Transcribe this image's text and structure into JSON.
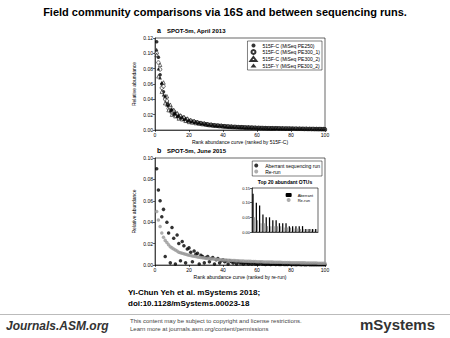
{
  "page": {
    "title": "Field community comparisons via 16S and between sequencing runs.",
    "citation": [
      "Yi-Chun Yeh et al. mSystems 2018;",
      "doi:10.1128/mSystems.00023-18"
    ],
    "publisher": "Journals.ASM.org",
    "notice": [
      "This content may be subject to copyright and license restrictions.",
      "Learn more at journals.asm.org/content/permissions"
    ],
    "journal": "mSystems"
  },
  "chart_data": [
    {
      "type": "scatter",
      "panel": "a",
      "title": "SPOT-5m, April 2013",
      "x_label": "Rank abundance curve (ranked by 515F-C)",
      "y_label": "Relative abundance",
      "x": [
        1,
        2,
        3,
        4,
        5,
        6,
        7,
        8,
        9,
        10,
        11,
        12,
        13,
        14,
        15,
        16,
        17,
        18,
        19,
        20,
        21,
        22,
        23,
        24,
        25,
        26,
        27,
        28,
        29,
        30,
        31,
        32,
        33,
        34,
        35,
        36,
        37,
        38,
        39,
        40,
        41,
        42,
        43,
        44,
        45,
        46,
        47,
        48,
        49,
        50,
        51,
        52,
        53,
        54,
        55,
        56,
        57,
        58,
        59,
        60,
        61,
        62,
        63,
        64,
        65,
        66,
        67,
        68,
        69,
        70,
        71,
        72,
        73,
        74,
        75,
        76,
        77,
        78,
        79,
        80,
        81,
        82,
        83,
        84,
        85,
        86,
        87,
        88,
        89,
        90,
        91,
        92,
        93,
        94,
        95,
        96,
        97,
        98,
        99,
        100
      ],
      "xlim": [
        0,
        100
      ],
      "xticks": [
        0,
        20,
        40,
        60,
        80,
        100
      ],
      "ylim": [
        0,
        0.12
      ],
      "yticks": [
        {
          "value": 0,
          "label": "0.00"
        },
        0.02,
        0.04,
        0.06,
        0.08,
        {
          "value": 0.1,
          "label": "0.10"
        },
        0.12
      ],
      "grid": false,
      "legend": "top-right",
      "series": [
        {
          "name": "515F-C (MiSeq PE250)",
          "color": "#000000",
          "marker": "circle",
          "values": [
            0.115,
            0.095,
            0.072,
            0.06,
            0.05,
            0.042,
            0.036,
            0.031,
            0.028,
            0.025,
            0.023,
            0.021,
            0.019,
            0.018,
            0.017,
            0.016,
            0.015,
            0.014,
            0.013,
            0.012,
            0.0115,
            0.011,
            0.0105,
            0.01,
            0.0095,
            0.009,
            0.0086,
            0.0082,
            0.0078,
            0.0074,
            0.0071,
            0.0068,
            0.0065,
            0.0062,
            0.006,
            0.0058,
            0.0056,
            0.0054,
            0.0052,
            0.005,
            0.0048,
            0.0047,
            0.0045,
            0.0044,
            0.0042,
            0.0041,
            0.004,
            0.0039,
            0.0038,
            0.0037,
            0.0036,
            0.0035,
            0.0034,
            0.0033,
            0.0032,
            0.0031,
            0.0031,
            0.003,
            0.0029,
            0.0028,
            0.0028,
            0.0027,
            0.0026,
            0.0026,
            0.0025,
            0.0024,
            0.0024,
            0.0023,
            0.0023,
            0.0022,
            0.0022,
            0.0021,
            0.0021,
            0.002,
            0.002,
            0.0019,
            0.0019,
            0.0019,
            0.0018,
            0.0018,
            0.0017,
            0.0017,
            0.0017,
            0.0016,
            0.0016,
            0.0016,
            0.0015,
            0.0015,
            0.0015,
            0.0014,
            0.0014,
            0.0014,
            0.0013,
            0.0013,
            0.0013,
            0.0013,
            0.0012,
            0.0012,
            0.0012,
            0.0012
          ]
        },
        {
          "name": "515F-C (MiSeq PE300_1)",
          "color": "#000000",
          "marker": "open_circle",
          "values": [
            0.1,
            0.088,
            0.079,
            0.055,
            0.057,
            0.04,
            0.038,
            0.028,
            0.03,
            0.022,
            0.025,
            0.019,
            0.021,
            0.016,
            0.018,
            0.015,
            0.016,
            0.013,
            0.014,
            0.011,
            0.012,
            0.0105,
            0.011,
            0.0095,
            0.0098,
            0.0088,
            0.009,
            0.008,
            0.0081,
            0.0072,
            0.0073,
            0.0066,
            0.0067,
            0.006,
            0.0062,
            0.0057,
            0.0058,
            0.0053,
            0.0054,
            0.0049,
            0.005,
            0.0046,
            0.0046,
            0.0043,
            0.0043,
            0.004,
            0.0041,
            0.0038,
            0.0039,
            0.0036,
            0.0037,
            0.0034,
            0.0035,
            0.0032,
            0.0033,
            0.003,
            0.0032,
            0.0029,
            0.003,
            0.0027,
            0.0029,
            0.0026,
            0.0027,
            0.0025,
            0.0026,
            0.0023,
            0.0025,
            0.0022,
            0.0024,
            0.0021,
            0.0023,
            0.002,
            0.0022,
            0.0019,
            0.0021,
            0.0018,
            0.002,
            0.0018,
            0.0019,
            0.0017,
            0.0018,
            0.0016,
            0.0018,
            0.0015,
            0.0017,
            0.0015,
            0.0016,
            0.0014,
            0.0016,
            0.0013,
            0.0015,
            0.0013,
            0.0014,
            0.0012,
            0.0014,
            0.0012,
            0.0013,
            0.0011,
            0.0013,
            0.0011
          ]
        },
        {
          "name": "515F-C (MiSeq PE300_2)",
          "color": "#000000",
          "marker": "open_triangle",
          "values": [
            0.098,
            0.07,
            0.085,
            0.05,
            0.062,
            0.035,
            0.044,
            0.026,
            0.033,
            0.02,
            0.026,
            0.018,
            0.022,
            0.015,
            0.019,
            0.014,
            0.017,
            0.012,
            0.015,
            0.0105,
            0.013,
            0.0098,
            0.0118,
            0.009,
            0.0105,
            0.0083,
            0.0095,
            0.0077,
            0.0088,
            0.007,
            0.008,
            0.0064,
            0.0074,
            0.0059,
            0.0068,
            0.0055,
            0.0063,
            0.0051,
            0.0059,
            0.0047,
            0.0055,
            0.0044,
            0.0051,
            0.0041,
            0.0048,
            0.0039,
            0.0045,
            0.0037,
            0.0042,
            0.0035,
            0.004,
            0.0033,
            0.0038,
            0.0031,
            0.0036,
            0.003,
            0.0034,
            0.0028,
            0.0033,
            0.0027,
            0.0031,
            0.0026,
            0.003,
            0.0025,
            0.0029,
            0.0024,
            0.0028,
            0.0023,
            0.0027,
            0.0022,
            0.0026,
            0.0021,
            0.0025,
            0.002,
            0.0024,
            0.0019,
            0.0023,
            0.0019,
            0.0022,
            0.0018,
            0.0021,
            0.0017,
            0.0021,
            0.0016,
            0.002,
            0.0016,
            0.0019,
            0.0015,
            0.0019,
            0.0015,
            0.0018,
            0.0014,
            0.0018,
            0.0014,
            0.0017,
            0.0013,
            0.0017,
            0.0013,
            0.0016,
            0.0012
          ]
        },
        {
          "name": "515F-Y (MiSeq PE300_2)",
          "color": "#000000",
          "marker": "triangle",
          "values": [
            0.105,
            0.08,
            0.068,
            0.062,
            0.046,
            0.045,
            0.033,
            0.034,
            0.025,
            0.027,
            0.021,
            0.022,
            0.018,
            0.019,
            0.016,
            0.017,
            0.014,
            0.015,
            0.012,
            0.013,
            0.0112,
            0.0118,
            0.0101,
            0.0108,
            0.0092,
            0.0097,
            0.0084,
            0.0088,
            0.0077,
            0.008,
            0.007,
            0.0073,
            0.0064,
            0.0068,
            0.0059,
            0.0063,
            0.0055,
            0.0058,
            0.0051,
            0.0054,
            0.0047,
            0.005,
            0.0044,
            0.0047,
            0.0041,
            0.0044,
            0.0039,
            0.0041,
            0.0037,
            0.0039,
            0.0035,
            0.0037,
            0.0033,
            0.0035,
            0.0031,
            0.0033,
            0.003,
            0.0032,
            0.0028,
            0.003,
            0.0027,
            0.0029,
            0.0026,
            0.0027,
            0.0025,
            0.0026,
            0.0024,
            0.0025,
            0.0023,
            0.0024,
            0.0022,
            0.0023,
            0.0021,
            0.0022,
            0.002,
            0.0021,
            0.0019,
            0.0021,
            0.0019,
            0.002,
            0.0018,
            0.0019,
            0.0017,
            0.0018,
            0.0017,
            0.0018,
            0.0016,
            0.0017,
            0.0015,
            0.0016,
            0.0015,
            0.0016,
            0.0014,
            0.0015,
            0.0014,
            0.0015,
            0.0013,
            0.0014,
            0.0013,
            0.0013
          ]
        }
      ]
    },
    {
      "type": "scatter",
      "panel": "b",
      "title": "SPOT-5m, June 2015",
      "x_label": "Rank abundance curve (ranked by re-run)",
      "y_label": "Relative abundance",
      "x": [
        1,
        2,
        3,
        4,
        5,
        6,
        7,
        8,
        9,
        10,
        11,
        12,
        13,
        14,
        15,
        16,
        17,
        18,
        19,
        20,
        21,
        22,
        23,
        24,
        25,
        26,
        27,
        28,
        29,
        30,
        31,
        32,
        33,
        34,
        35,
        36,
        37,
        38,
        39,
        40,
        41,
        42,
        43,
        44,
        45,
        46,
        47,
        48,
        49,
        50,
        51,
        52,
        53,
        54,
        55,
        56,
        57,
        58,
        59,
        60,
        61,
        62,
        63,
        64,
        65,
        66,
        67,
        68,
        69,
        70,
        71,
        72,
        73,
        74,
        75,
        76,
        77,
        78,
        79,
        80,
        81,
        82,
        83,
        84,
        85,
        86,
        87,
        88,
        89,
        90,
        91,
        92,
        93,
        94,
        95,
        96,
        97,
        98,
        99,
        100
      ],
      "xlim": [
        0,
        100
      ],
      "xticks": [
        0,
        20,
        40,
        60,
        80,
        100
      ],
      "ylim": [
        0,
        0.1
      ],
      "yticks": [
        {
          "value": 0,
          "label": "0.00"
        },
        0.02,
        0.04,
        0.06,
        0.08,
        {
          "value": 0.1,
          "label": "0.10"
        }
      ],
      "grid": false,
      "legend": "top-right",
      "series": [
        {
          "name": "Aberrant sequencing run",
          "color": "#000000",
          "marker": "circle",
          "values": [
            0.09,
            0.07,
            0.06,
            0.045,
            0.052,
            0.008,
            0.04,
            0.03,
            0.002,
            0.035,
            0.025,
            0.001,
            0.028,
            0.02,
            0.004,
            0.022,
            0.018,
            0.002,
            0.015,
            0.016,
            0.012,
            0.003,
            0.013,
            0.01,
            0.011,
            0.001,
            0.009,
            0.008,
            0.002,
            0.007,
            0.008,
            0.003,
            0.006,
            0.007,
            0.001,
            0.005,
            0.006,
            0.002,
            0.004,
            0.005,
            0.003,
            0.004,
            0.001,
            0.004,
            0.003,
            0.002,
            0.003,
            0.001,
            0.003,
            0.002,
            0.002,
            0.001,
            0.002,
            0.002,
            0.001,
            0.002,
            0.001,
            0.002,
            0.001,
            0.001,
            0.001,
            0.002,
            0.001,
            0.001,
            0.0005,
            0.001,
            0.001,
            0.0005,
            0.001,
            0.001,
            0.0005,
            0.001,
            0.0005,
            0.0005,
            0.001,
            0.0005,
            0.0005,
            0.0005,
            0.001,
            0.0005,
            0.0005,
            0.0005,
            0.0003,
            0.0005,
            0.0005,
            0.0003,
            0.0005,
            0.0003,
            0.0003,
            0.0005,
            0.0003,
            0.0003,
            0.0003,
            0.0002,
            0.0003,
            0.0002,
            0.0002,
            0.0003,
            0.0002,
            0.0002
          ]
        },
        {
          "name": "Re-run",
          "color": "#999999",
          "marker": "circle",
          "values": [
            0.05,
            0.042,
            0.036,
            0.03,
            0.026,
            0.023,
            0.021,
            0.019,
            0.017,
            0.016,
            0.015,
            0.014,
            0.013,
            0.012,
            0.0115,
            0.011,
            0.0105,
            0.01,
            0.0096,
            0.0092,
            0.0088,
            0.0085,
            0.0082,
            0.0079,
            0.0076,
            0.0073,
            0.007,
            0.0068,
            0.0066,
            0.0064,
            0.0062,
            0.006,
            0.0058,
            0.0056,
            0.0055,
            0.0053,
            0.0052,
            0.005,
            0.0049,
            0.0048,
            0.0047,
            0.0046,
            0.0045,
            0.0044,
            0.0043,
            0.0042,
            0.0041,
            0.004,
            0.0039,
            0.0038,
            0.0038,
            0.0037,
            0.0036,
            0.0035,
            0.0035,
            0.0034,
            0.0033,
            0.0033,
            0.0032,
            0.0031,
            0.0031,
            0.003,
            0.003,
            0.0029,
            0.0029,
            0.0028,
            0.0028,
            0.0027,
            0.0027,
            0.0026,
            0.0026,
            0.0025,
            0.0025,
            0.0025,
            0.0024,
            0.0024,
            0.0023,
            0.0023,
            0.0023,
            0.0022,
            0.0022,
            0.0022,
            0.0021,
            0.0021,
            0.0021,
            0.002,
            0.002,
            0.002,
            0.0019,
            0.0019,
            0.0019,
            0.0018,
            0.0018,
            0.0018,
            0.0018,
            0.0017,
            0.0017,
            0.0017,
            0.0016,
            0.0016
          ]
        }
      ]
    },
    {
      "type": "bar",
      "title": "Top 20 abundant OTUs",
      "categories": [
        null,
        null,
        null,
        null,
        null,
        null,
        null,
        null,
        null,
        null,
        null,
        null,
        null,
        null,
        null,
        null,
        null,
        null,
        null,
        null
      ],
      "ylim": [
        0,
        0.15
      ],
      "yticks": [
        {
          "value": 0,
          "label": "0.00"
        },
        0.05,
        {
          "value": 0.1,
          "label": "0.10"
        },
        0.15
      ],
      "grid": false,
      "legend": "top-right",
      "series": [
        {
          "name": "Aberrant",
          "color": "#000000",
          "values": [
            0.13,
            0.1,
            0.09,
            0.06,
            0.05,
            0.05,
            0.04,
            0.04,
            0.03,
            0.03,
            0.03,
            0.02,
            0.02,
            0.02,
            0.02,
            0.02,
            0.01,
            0.01,
            0.01,
            0.01
          ]
        },
        {
          "name": "Re-run",
          "color": "#999999",
          "values": [
            0.05,
            0.04,
            0.03,
            0.03,
            0.02,
            0.02,
            0.02,
            0.02,
            0.02,
            0.015,
            0.015,
            0.015,
            0.012,
            0.012,
            0.01,
            0.01,
            0.01,
            0.01,
            0.009,
            0.009
          ]
        }
      ]
    }
  ]
}
